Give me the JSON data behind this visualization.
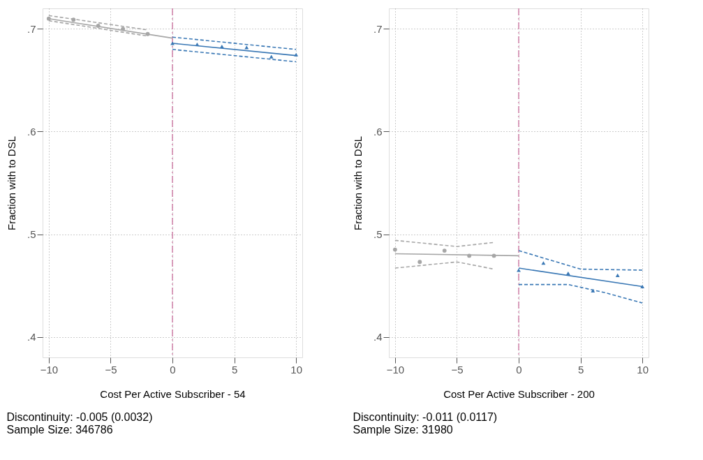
{
  "chart_data": [
    {
      "type": "line",
      "xlabel": "Cost Per Active Subscriber - 54",
      "ylabel": "Fraction with to DSL",
      "annotations": [
        "Discontinuity: -0.005 (0.0032)",
        "Sample Size: 346786"
      ],
      "xlim": [
        -10.5,
        10.5
      ],
      "xticks": [
        -10,
        -5,
        0,
        5,
        10
      ],
      "ylim": [
        0.38,
        0.72
      ],
      "yticks": [
        {
          "value": 0.4,
          "label": ".4"
        },
        {
          "value": 0.5,
          "label": ".5"
        },
        {
          "value": 0.6,
          "label": ".6"
        },
        {
          "value": 0.7,
          "label": ".7"
        }
      ],
      "grid": true,
      "ref_lines": [
        {
          "axis": "x",
          "value": 0,
          "color": "#d080a8",
          "line_style": "dashed"
        }
      ],
      "series": [
        {
          "type": "scatter",
          "marker": "circle",
          "color": "#a6a6a6",
          "x": [
            -10,
            -8,
            -6,
            -4,
            -2
          ],
          "values": [
            0.71,
            0.709,
            0.703,
            0.7,
            0.695
          ]
        },
        {
          "line_style": "solid",
          "color": "#a6a6a6",
          "x": [
            -10,
            0
          ],
          "values": [
            0.71,
            0.691
          ]
        },
        {
          "type": "line",
          "line_style": "dashed",
          "color": "#a6a6a6",
          "x": [
            -10,
            -2
          ],
          "values": [
            0.713,
            0.699
          ]
        },
        {
          "type": "line",
          "line_style": "dashed",
          "color": "#a6a6a6",
          "x": [
            -10,
            -2
          ],
          "values": [
            0.708,
            0.693
          ]
        },
        {
          "type": "scatter",
          "marker": "triangle",
          "color": "#3a78b5",
          "x": [
            0,
            2,
            4,
            6,
            8,
            10
          ],
          "values": [
            0.686,
            0.685,
            0.683,
            0.682,
            0.673,
            0.675
          ]
        },
        {
          "line_style": "solid",
          "color": "#3a78b5",
          "x": [
            0,
            10
          ],
          "values": [
            0.686,
            0.674
          ]
        },
        {
          "type": "line",
          "line_style": "dashed",
          "color": "#3a78b5",
          "x": [
            0,
            10
          ],
          "values": [
            0.692,
            0.68
          ]
        },
        {
          "type": "line",
          "line_style": "dashed",
          "color": "#3a78b5",
          "x": [
            0,
            10
          ],
          "values": [
            0.68,
            0.668
          ]
        }
      ]
    },
    {
      "type": "line",
      "xlabel": "Cost Per Active Subscriber - 200",
      "ylabel": "Fraction with to DSL",
      "annotations": [
        "Discontinuity: -0.011 (0.0117)",
        "Sample Size: 31980"
      ],
      "xlim": [
        -10.5,
        10.5
      ],
      "xticks": [
        -10,
        -5,
        0,
        5,
        10
      ],
      "ylim": [
        0.38,
        0.72
      ],
      "yticks": [
        {
          "value": 0.4,
          "label": ".4"
        },
        {
          "value": 0.5,
          "label": ".5"
        },
        {
          "value": 0.6,
          "label": ".6"
        },
        {
          "value": 0.7,
          "label": ".7"
        }
      ],
      "grid": true,
      "ref_lines": [
        {
          "axis": "x",
          "value": 0,
          "color": "#d080a8",
          "line_style": "dashed"
        }
      ],
      "series": [
        {
          "type": "scatter",
          "marker": "circle",
          "color": "#a6a6a6",
          "x": [
            -10,
            -8,
            -6,
            -4,
            -2
          ],
          "values": [
            0.485,
            0.473,
            0.484,
            0.479,
            0.479
          ]
        },
        {
          "line_style": "solid",
          "color": "#a6a6a6",
          "x": [
            -10,
            0
          ],
          "values": [
            0.481,
            0.479
          ]
        },
        {
          "type": "line",
          "line_style": "dashed",
          "color": "#a6a6a6",
          "x": [
            -10,
            -5,
            -2
          ],
          "values": [
            0.494,
            0.488,
            0.492
          ]
        },
        {
          "type": "line",
          "line_style": "dashed",
          "color": "#a6a6a6",
          "x": [
            -10,
            -5,
            -2
          ],
          "values": [
            0.467,
            0.473,
            0.466
          ]
        },
        {
          "type": "scatter",
          "marker": "triangle",
          "color": "#3a78b5",
          "x": [
            0,
            2,
            4,
            6,
            8,
            10
          ],
          "values": [
            0.465,
            0.472,
            0.462,
            0.445,
            0.46,
            0.449
          ]
        },
        {
          "line_style": "solid",
          "color": "#3a78b5",
          "x": [
            0,
            10
          ],
          "values": [
            0.467,
            0.449
          ]
        },
        {
          "type": "line",
          "line_style": "dashed",
          "color": "#3a78b5",
          "x": [
            0,
            5,
            10
          ],
          "values": [
            0.484,
            0.466,
            0.465
          ]
        },
        {
          "type": "line",
          "line_style": "dashed",
          "color": "#3a78b5",
          "x": [
            0,
            4,
            7,
            10
          ],
          "values": [
            0.451,
            0.451,
            0.443,
            0.433
          ]
        }
      ]
    }
  ]
}
